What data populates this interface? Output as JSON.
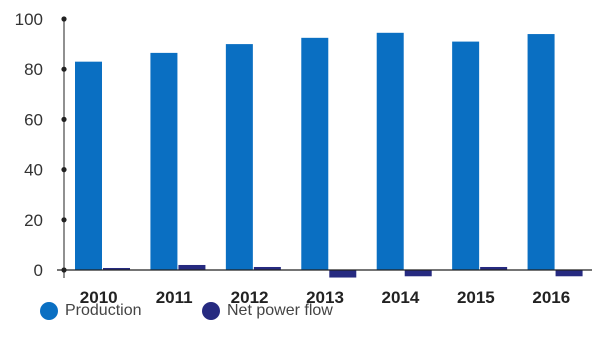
{
  "chart_data": {
    "type": "bar",
    "categories": [
      "2010",
      "2011",
      "2012",
      "2013",
      "2014",
      "2015",
      "2016"
    ],
    "series": [
      {
        "name": "Production",
        "color": "#0a6fc2",
        "values": [
          83,
          86.5,
          90,
          92.5,
          94.5,
          91,
          94
        ]
      },
      {
        "name": "Net power flow",
        "color": "#262a80",
        "values": [
          0.8,
          2,
          1.2,
          -3,
          -2.5,
          1.2,
          -2.5
        ]
      }
    ],
    "ylim": [
      0,
      100
    ],
    "yticks": [
      0,
      20,
      40,
      60,
      80,
      100
    ],
    "grid": false,
    "legend_position": "bottom-left"
  }
}
